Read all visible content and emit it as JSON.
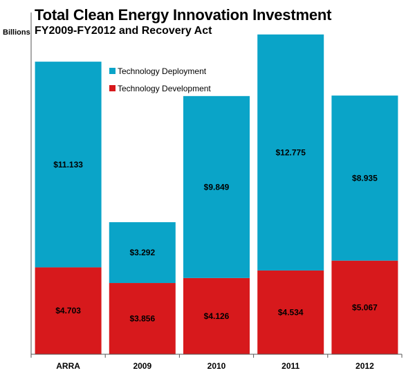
{
  "chart_data": {
    "type": "bar",
    "stacked": true,
    "title": "Total Clean Energy Innovation Investment",
    "subtitle": "FY2009-FY2012 and Recovery Act",
    "ylabel": "Billions",
    "xlabel": "",
    "ylim": [
      0,
      18.5
    ],
    "grid": false,
    "legend_position": "top-left",
    "categories": [
      "ARRA",
      "2009",
      "2010",
      "2011",
      "2012"
    ],
    "series": [
      {
        "name": "Technology Development",
        "color": "#d7191c",
        "values": [
          4.703,
          3.856,
          4.126,
          4.534,
          5.067
        ],
        "labels": [
          "$4.703",
          "$3.856",
          "$4.126",
          "$4.534",
          "$5.067"
        ]
      },
      {
        "name": "Technology Deployment",
        "color": "#0aa4c8",
        "values": [
          11.133,
          3.292,
          9.849,
          12.775,
          8.935
        ],
        "labels": [
          "$11.133",
          "$3.292",
          "$9.849",
          "$12.775",
          "$8.935"
        ]
      }
    ],
    "legend_order": [
      "Technology Deployment",
      "Technology Development"
    ]
  }
}
